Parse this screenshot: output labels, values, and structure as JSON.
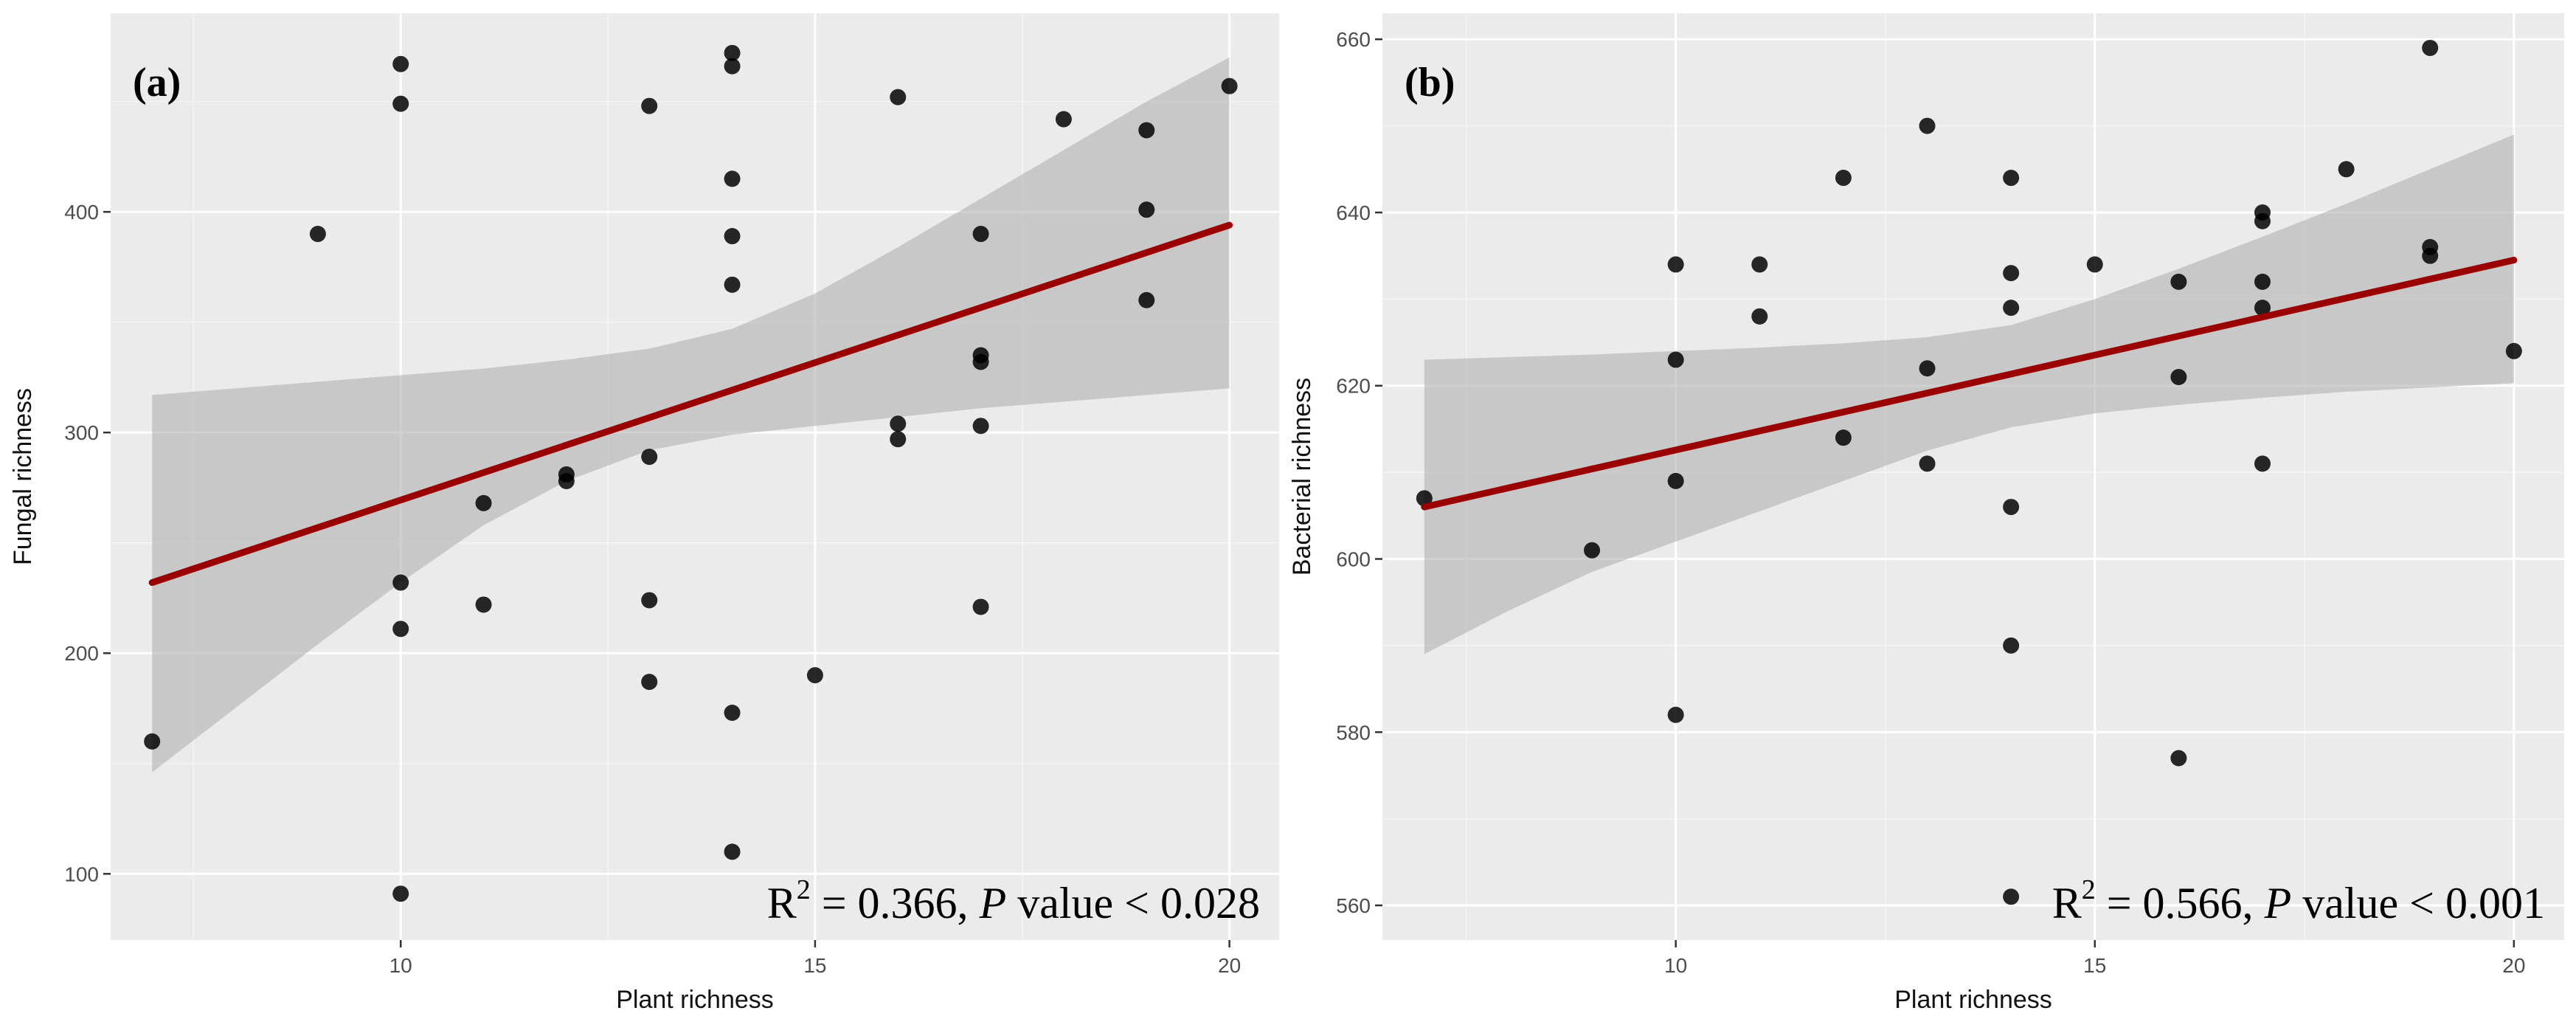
{
  "chart_data": [
    {
      "type": "scatter",
      "panel_label": "(a)",
      "xlabel": "Plant richness",
      "ylabel": "Fungal richness",
      "xlim": [
        6.5,
        20.6
      ],
      "ylim": [
        70,
        490
      ],
      "xticks": [
        10,
        15,
        20
      ],
      "yticks": [
        100,
        200,
        300,
        400
      ],
      "points": [
        [
          7,
          160
        ],
        [
          9,
          390
        ],
        [
          10,
          467
        ],
        [
          10,
          449
        ],
        [
          10,
          232
        ],
        [
          10,
          211
        ],
        [
          10,
          91
        ],
        [
          11,
          268
        ],
        [
          11,
          222
        ],
        [
          12,
          281
        ],
        [
          12,
          278
        ],
        [
          13,
          448
        ],
        [
          13,
          289
        ],
        [
          13,
          224
        ],
        [
          13,
          187
        ],
        [
          14,
          472
        ],
        [
          14,
          466
        ],
        [
          14,
          415
        ],
        [
          14,
          389
        ],
        [
          14,
          367
        ],
        [
          14,
          173
        ],
        [
          14,
          110
        ],
        [
          15,
          190
        ],
        [
          16,
          452
        ],
        [
          16,
          304
        ],
        [
          16,
          297
        ],
        [
          17,
          390
        ],
        [
          17,
          335
        ],
        [
          17,
          332
        ],
        [
          17,
          303
        ],
        [
          17,
          221
        ],
        [
          18,
          442
        ],
        [
          19,
          437
        ],
        [
          19,
          401
        ],
        [
          19,
          360
        ],
        [
          20,
          457
        ]
      ],
      "fit": {
        "x": [
          7,
          20
        ],
        "y": [
          232,
          394
        ]
      },
      "ci_upper": [
        [
          7,
          317
        ],
        [
          8,
          320
        ],
        [
          9,
          323
        ],
        [
          10,
          326
        ],
        [
          11,
          329
        ],
        [
          12,
          333
        ],
        [
          13,
          338
        ],
        [
          14,
          347
        ],
        [
          15,
          363
        ],
        [
          16,
          384
        ],
        [
          17,
          406
        ],
        [
          18,
          428
        ],
        [
          19,
          450
        ],
        [
          20,
          470
        ]
      ],
      "ci_lower": [
        [
          7,
          146
        ],
        [
          8,
          175
        ],
        [
          9,
          204
        ],
        [
          10,
          232
        ],
        [
          11,
          258
        ],
        [
          12,
          278
        ],
        [
          13,
          292
        ],
        [
          14,
          299
        ],
        [
          15,
          303
        ],
        [
          16,
          307
        ],
        [
          17,
          311
        ],
        [
          18,
          314
        ],
        [
          19,
          317
        ],
        [
          20,
          320
        ]
      ],
      "stat_prefix": "R",
      "stat_sup": "2",
      "stat_middle": " = 0.366, ",
      "stat_italic": "P",
      "stat_suffix": " value < 0.028"
    },
    {
      "type": "scatter",
      "panel_label": "(b)",
      "xlabel": "Plant richness",
      "ylabel": "Bacterial richness",
      "xlim": [
        6.5,
        20.6
      ],
      "ylim": [
        556,
        663
      ],
      "xticks": [
        10,
        15,
        20
      ],
      "yticks": [
        560,
        580,
        600,
        620,
        640,
        660
      ],
      "points": [
        [
          7,
          607
        ],
        [
          9,
          601
        ],
        [
          10,
          634
        ],
        [
          10,
          623
        ],
        [
          10,
          609
        ],
        [
          10,
          582
        ],
        [
          11,
          634
        ],
        [
          11,
          628
        ],
        [
          12,
          644
        ],
        [
          12,
          614
        ],
        [
          13,
          650
        ],
        [
          13,
          622
        ],
        [
          13,
          611
        ],
        [
          14,
          644
        ],
        [
          14,
          633
        ],
        [
          14,
          629
        ],
        [
          14,
          606
        ],
        [
          14,
          590
        ],
        [
          14,
          561
        ],
        [
          15,
          634
        ],
        [
          16,
          632
        ],
        [
          16,
          621
        ],
        [
          16,
          577
        ],
        [
          17,
          640
        ],
        [
          17,
          639
        ],
        [
          17,
          632
        ],
        [
          17,
          629
        ],
        [
          17,
          611
        ],
        [
          18,
          645
        ],
        [
          19,
          659
        ],
        [
          19,
          636
        ],
        [
          19,
          635
        ],
        [
          20,
          624
        ]
      ],
      "fit": {
        "x": [
          7,
          20
        ],
        "y": [
          606,
          634.5
        ]
      },
      "ci_upper": [
        [
          7,
          623
        ],
        [
          8,
          623.3
        ],
        [
          9,
          623.6
        ],
        [
          10,
          624
        ],
        [
          11,
          624.4
        ],
        [
          12,
          624.9
        ],
        [
          13,
          625.6
        ],
        [
          14,
          627
        ],
        [
          15,
          630
        ],
        [
          16,
          633.5
        ],
        [
          17,
          637.2
        ],
        [
          18,
          641
        ],
        [
          19,
          645
        ],
        [
          20,
          649
        ]
      ],
      "ci_lower": [
        [
          7,
          589
        ],
        [
          8,
          594
        ],
        [
          9,
          598.5
        ],
        [
          10,
          602
        ],
        [
          11,
          605.5
        ],
        [
          12,
          609
        ],
        [
          13,
          612.5
        ],
        [
          14,
          615.2
        ],
        [
          15,
          616.8
        ],
        [
          16,
          617.8
        ],
        [
          17,
          618.6
        ],
        [
          18,
          619.3
        ],
        [
          19,
          619.8
        ],
        [
          20,
          620.3
        ]
      ],
      "stat_prefix": "R",
      "stat_sup": "2",
      "stat_middle": " = 0.566, ",
      "stat_italic": "P",
      "stat_suffix": " value < 0.001"
    }
  ]
}
